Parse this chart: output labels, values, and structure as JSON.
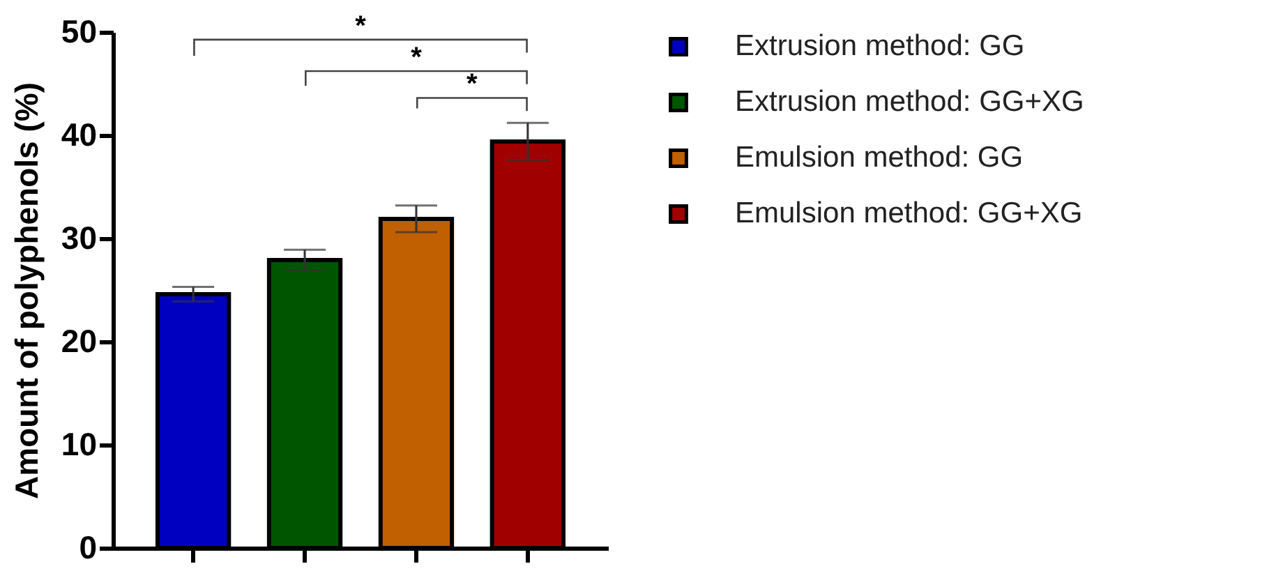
{
  "chart_data": {
    "type": "bar",
    "ylabel": "Amount of polyphenols (%)",
    "categories": [
      null,
      null,
      null,
      null
    ],
    "series": [
      {
        "name": "Extrusion method: GG",
        "color": "#0000c0",
        "values": [
          24.6,
          null,
          null,
          null
        ],
        "errors": [
          0.7,
          null,
          null,
          null
        ]
      },
      {
        "name": "Extrusion method: GG+XG",
        "color": "#005500",
        "values": [
          null,
          27.9,
          null,
          null
        ],
        "errors": [
          null,
          1.0,
          null,
          null
        ]
      },
      {
        "name": "Emulsion method: GG",
        "color": "#c06000",
        "values": [
          null,
          null,
          31.9,
          null
        ],
        "errors": [
          null,
          null,
          1.3,
          null
        ]
      },
      {
        "name": "Emulsion method: GG+XG",
        "color": "#a00000",
        "values": [
          null,
          null,
          null,
          39.4
        ],
        "errors": [
          null,
          null,
          null,
          1.8
        ]
      }
    ],
    "ylim": [
      0,
      50
    ],
    "yticks": [
      0,
      10,
      20,
      30,
      40,
      50
    ],
    "tick_labels": "y",
    "grid": false,
    "legend": "right",
    "annotations": [
      "*",
      "*",
      "*"
    ]
  }
}
